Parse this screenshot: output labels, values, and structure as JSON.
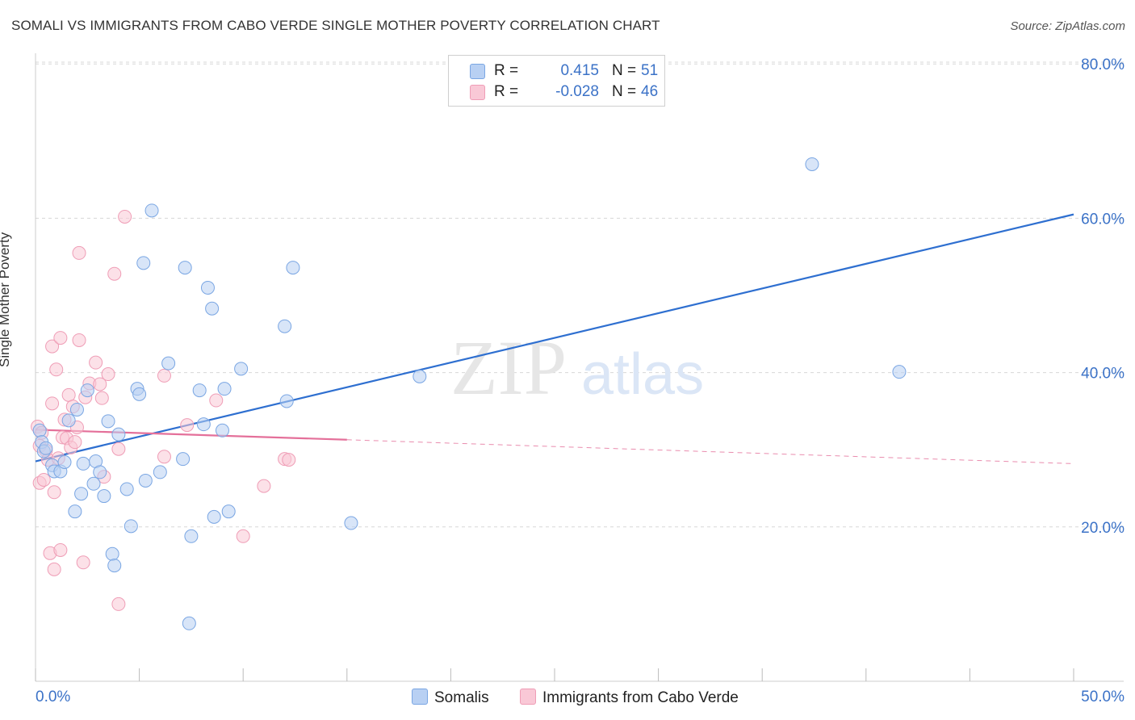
{
  "title": "SOMALI VS IMMIGRANTS FROM CABO VERDE SINGLE MOTHER POVERTY CORRELATION CHART",
  "source": "Source: ZipAtlas.com",
  "watermark": {
    "zip": "ZIP",
    "atlas": "atlas"
  },
  "legend": {
    "rows": [
      {
        "r_label": "R =",
        "r_value": "0.415",
        "n_label": "N =",
        "n_value": "51"
      },
      {
        "r_label": "R =",
        "r_value": "-0.028",
        "n_label": "N =",
        "n_value": "46"
      }
    ]
  },
  "bottom_legend": {
    "somalis": "Somalis",
    "cabo_verde": "Immigrants from Cabo Verde"
  },
  "colors": {
    "blue_fill": "#b8d0f3",
    "blue_stroke": "#7aa6e3",
    "blue_line": "#2e6fd0",
    "pink_fill": "#f9c8d6",
    "pink_stroke": "#ef9db6",
    "pink_line": "#e4709a",
    "grid": "#d8d8d8",
    "tick_text": "#3b72c7"
  },
  "chart_data": {
    "type": "scatter",
    "title": "SOMALI VS IMMIGRANTS FROM CABO VERDE SINGLE MOTHER POVERTY CORRELATION CHART",
    "xlabel": "",
    "ylabel": "Single Mother Poverty",
    "xlim": [
      0,
      50
    ],
    "ylim": [
      0,
      83
    ],
    "x_tick_labels": [
      "0.0%",
      "50.0%"
    ],
    "y_ticks": [
      20,
      40,
      60,
      80
    ],
    "y_tick_labels": [
      "20.0%",
      "40.0%",
      "60.0%",
      "80.0%"
    ],
    "series": [
      {
        "name": "Somalis",
        "r": 0.415,
        "n": 51,
        "trend": {
          "x": [
            0,
            50
          ],
          "y": [
            28.5,
            60.5
          ]
        },
        "points": [
          [
            0.2,
            32.5
          ],
          [
            0.3,
            31.0
          ],
          [
            0.4,
            29.8
          ],
          [
            0.5,
            30.2
          ],
          [
            0.8,
            28.0
          ],
          [
            0.9,
            27.2
          ],
          [
            1.2,
            27.2
          ],
          [
            1.4,
            28.4
          ],
          [
            1.6,
            33.8
          ],
          [
            1.9,
            22.0
          ],
          [
            2.0,
            35.2
          ],
          [
            2.2,
            24.3
          ],
          [
            2.3,
            28.2
          ],
          [
            2.5,
            37.7
          ],
          [
            2.8,
            25.6
          ],
          [
            2.9,
            28.5
          ],
          [
            3.1,
            27.1
          ],
          [
            3.3,
            24.0
          ],
          [
            3.5,
            33.7
          ],
          [
            3.7,
            16.5
          ],
          [
            3.8,
            15.0
          ],
          [
            4.0,
            32.0
          ],
          [
            4.4,
            24.9
          ],
          [
            4.6,
            20.1
          ],
          [
            4.9,
            37.9
          ],
          [
            5.0,
            37.2
          ],
          [
            5.2,
            54.2
          ],
          [
            5.3,
            26.0
          ],
          [
            5.6,
            61.0
          ],
          [
            6.0,
            27.1
          ],
          [
            6.4,
            41.2
          ],
          [
            7.1,
            28.8
          ],
          [
            7.2,
            53.6
          ],
          [
            7.4,
            7.5
          ],
          [
            7.5,
            18.8
          ],
          [
            7.9,
            37.7
          ],
          [
            8.1,
            33.3
          ],
          [
            8.3,
            51.0
          ],
          [
            8.5,
            48.3
          ],
          [
            8.6,
            21.3
          ],
          [
            9.0,
            32.5
          ],
          [
            9.1,
            37.9
          ],
          [
            9.3,
            22.0
          ],
          [
            9.9,
            40.5
          ],
          [
            12.0,
            46.0
          ],
          [
            12.1,
            36.3
          ],
          [
            12.4,
            53.6
          ],
          [
            15.2,
            20.5
          ],
          [
            18.5,
            39.5
          ],
          [
            37.4,
            67.0
          ],
          [
            41.6,
            40.1
          ]
        ]
      },
      {
        "name": "Immigrants from Cabo Verde",
        "r": -0.028,
        "n": 46,
        "trend": {
          "x": [
            0,
            15
          ],
          "y": [
            32.6,
            31.3
          ]
        },
        "trend_dashed": {
          "x": [
            15,
            50
          ],
          "y": [
            31.3,
            28.2
          ]
        },
        "points": [
          [
            0.1,
            33.0
          ],
          [
            0.2,
            30.5
          ],
          [
            0.2,
            25.7
          ],
          [
            0.3,
            32.2
          ],
          [
            0.4,
            26.1
          ],
          [
            0.5,
            29.9
          ],
          [
            0.6,
            28.7
          ],
          [
            0.7,
            16.6
          ],
          [
            0.8,
            43.4
          ],
          [
            0.8,
            36.0
          ],
          [
            0.9,
            14.5
          ],
          [
            0.9,
            24.5
          ],
          [
            1.0,
            40.4
          ],
          [
            1.1,
            28.9
          ],
          [
            1.2,
            17.0
          ],
          [
            1.2,
            44.5
          ],
          [
            1.3,
            31.6
          ],
          [
            1.4,
            33.9
          ],
          [
            1.5,
            31.5
          ],
          [
            1.6,
            37.1
          ],
          [
            1.7,
            30.3
          ],
          [
            1.8,
            35.6
          ],
          [
            1.9,
            31.0
          ],
          [
            2.0,
            32.9
          ],
          [
            2.1,
            44.2
          ],
          [
            2.1,
            55.5
          ],
          [
            2.3,
            15.4
          ],
          [
            2.4,
            36.8
          ],
          [
            2.6,
            38.6
          ],
          [
            2.9,
            41.3
          ],
          [
            3.1,
            38.5
          ],
          [
            3.2,
            36.7
          ],
          [
            3.3,
            26.5
          ],
          [
            3.5,
            39.8
          ],
          [
            3.8,
            52.8
          ],
          [
            4.0,
            30.1
          ],
          [
            4.0,
            10.0
          ],
          [
            4.3,
            60.2
          ],
          [
            6.2,
            39.6
          ],
          [
            6.2,
            29.1
          ],
          [
            7.3,
            33.2
          ],
          [
            8.7,
            36.4
          ],
          [
            10.0,
            18.8
          ],
          [
            11.0,
            25.3
          ],
          [
            12.0,
            28.8
          ],
          [
            12.2,
            28.7
          ]
        ]
      }
    ]
  }
}
